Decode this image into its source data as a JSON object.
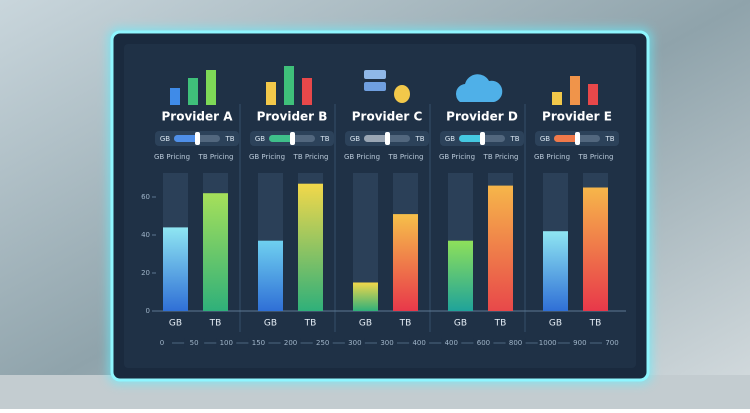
{
  "panels": [
    {
      "title": "Provider A",
      "toggle": [
        "GB",
        "TB"
      ],
      "pricing": [
        "GB Pricing",
        "TB Pricing"
      ],
      "slider_color": "#4f8fe8",
      "bars": [
        {
          "label": "GB",
          "value": 44,
          "colors": [
            "#8fe6f2",
            "#2f6fd6"
          ]
        },
        {
          "label": "TB",
          "value": 62,
          "colors": [
            "#a6e05a",
            "#2fb07a"
          ]
        }
      ]
    },
    {
      "title": "Provider B",
      "toggle": [
        "GB",
        "TB"
      ],
      "pricing": [
        "GB Pricing",
        "TB Pricing"
      ],
      "slider_color": "#3fbf8a",
      "bars": [
        {
          "label": "GB",
          "value": 37,
          "colors": [
            "#6fd0f0",
            "#2f6fd6"
          ]
        },
        {
          "label": "TB",
          "value": 67,
          "colors": [
            "#f2d84a",
            "#2fb07a"
          ]
        }
      ]
    },
    {
      "title": "Provider C",
      "toggle": [
        "GB",
        "TB"
      ],
      "pricing": [
        "GB Pricing",
        "TB Pricing"
      ],
      "slider_color": "#9aa6b4",
      "bars": [
        {
          "label": "GB",
          "value": 15,
          "colors": [
            "#f2d84a",
            "#2fb07a"
          ]
        },
        {
          "label": "TB",
          "value": 51,
          "colors": [
            "#f6c04a",
            "#e8384a"
          ]
        }
      ]
    },
    {
      "title": "Provider D",
      "toggle": [
        "GB",
        "TB"
      ],
      "pricing": [
        "GB Pricing",
        "TB Pricing"
      ],
      "slider_color": "#45c8e0",
      "bars": [
        {
          "label": "GB",
          "value": 37,
          "colors": [
            "#8ee05a",
            "#1fa39a"
          ]
        },
        {
          "label": "TB",
          "value": 66,
          "colors": [
            "#f6b64a",
            "#e8484a"
          ]
        }
      ]
    },
    {
      "title": "Provider E",
      "toggle": [
        "GB",
        "TB"
      ],
      "pricing": [
        "GB Pricing",
        "TB Pricing"
      ],
      "slider_color": "#f0794a",
      "bars": [
        {
          "label": "GB",
          "value": 42,
          "colors": [
            "#8fe6f2",
            "#2f6fd6"
          ]
        },
        {
          "label": "TB",
          "value": 65,
          "colors": [
            "#f6b64a",
            "#e8384a"
          ]
        }
      ]
    }
  ],
  "yticks": [
    0,
    20,
    40,
    60
  ],
  "axis_labels": [
    "0",
    "50",
    "100",
    "150",
    "200",
    "250",
    "300",
    "300",
    "400",
    "400",
    "600",
    "800",
    "1000",
    "900",
    "700"
  ]
}
